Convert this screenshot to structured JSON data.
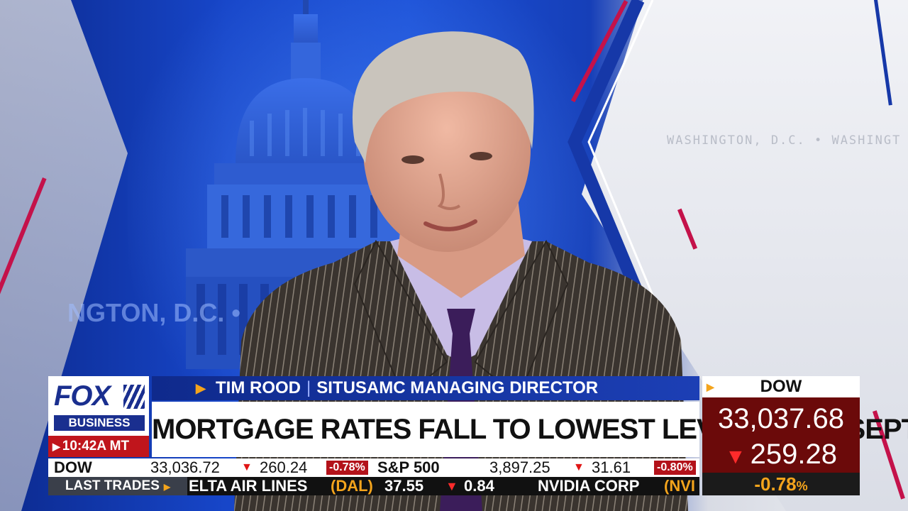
{
  "background": {
    "location_text": "WASHINGTON, D.C. • WASHINGT",
    "location_big": "NGTON, D.C. •"
  },
  "logo": {
    "fox": "FOX",
    "business": "BUSINESS",
    "time": "10:42A MT"
  },
  "lower_third": {
    "name": "TIM ROOD",
    "title": "SITUSAMC MANAGING DIRECTOR",
    "headline": "MORTGAGE RATES FALL TO LOWEST LEVEL SINCE SEPT"
  },
  "dow_box": {
    "label": "DOW",
    "value": "33,037.68",
    "change": "259.28",
    "percent": "-0.78",
    "percent_sign": "%"
  },
  "ticker_top": {
    "dow_label": "DOW",
    "dow_value": "33,036.72",
    "dow_change": "260.24",
    "dow_pct": "-0.78%",
    "sp_label": "S&P 500",
    "sp_value": "3,897.25",
    "sp_change": "31.61",
    "sp_pct": "-0.80%"
  },
  "ticker_bottom": {
    "label": "LAST TRADES",
    "stock1_name": "ELTA AIR LINES",
    "stock1_symbol": "(DAL)",
    "stock1_price": "37.55",
    "stock1_change": "0.84",
    "stock2_name": "NVIDIA CORP",
    "stock2_symbol": "(NVI"
  },
  "colors": {
    "fox_blue": "#1a2f8f",
    "alert_red": "#c0151c",
    "accent_gold": "#f4a41c",
    "dow_maroon": "#6b0a0a"
  },
  "icons": {
    "play": "play-triangle-icon",
    "down": "down-arrow-icon"
  }
}
